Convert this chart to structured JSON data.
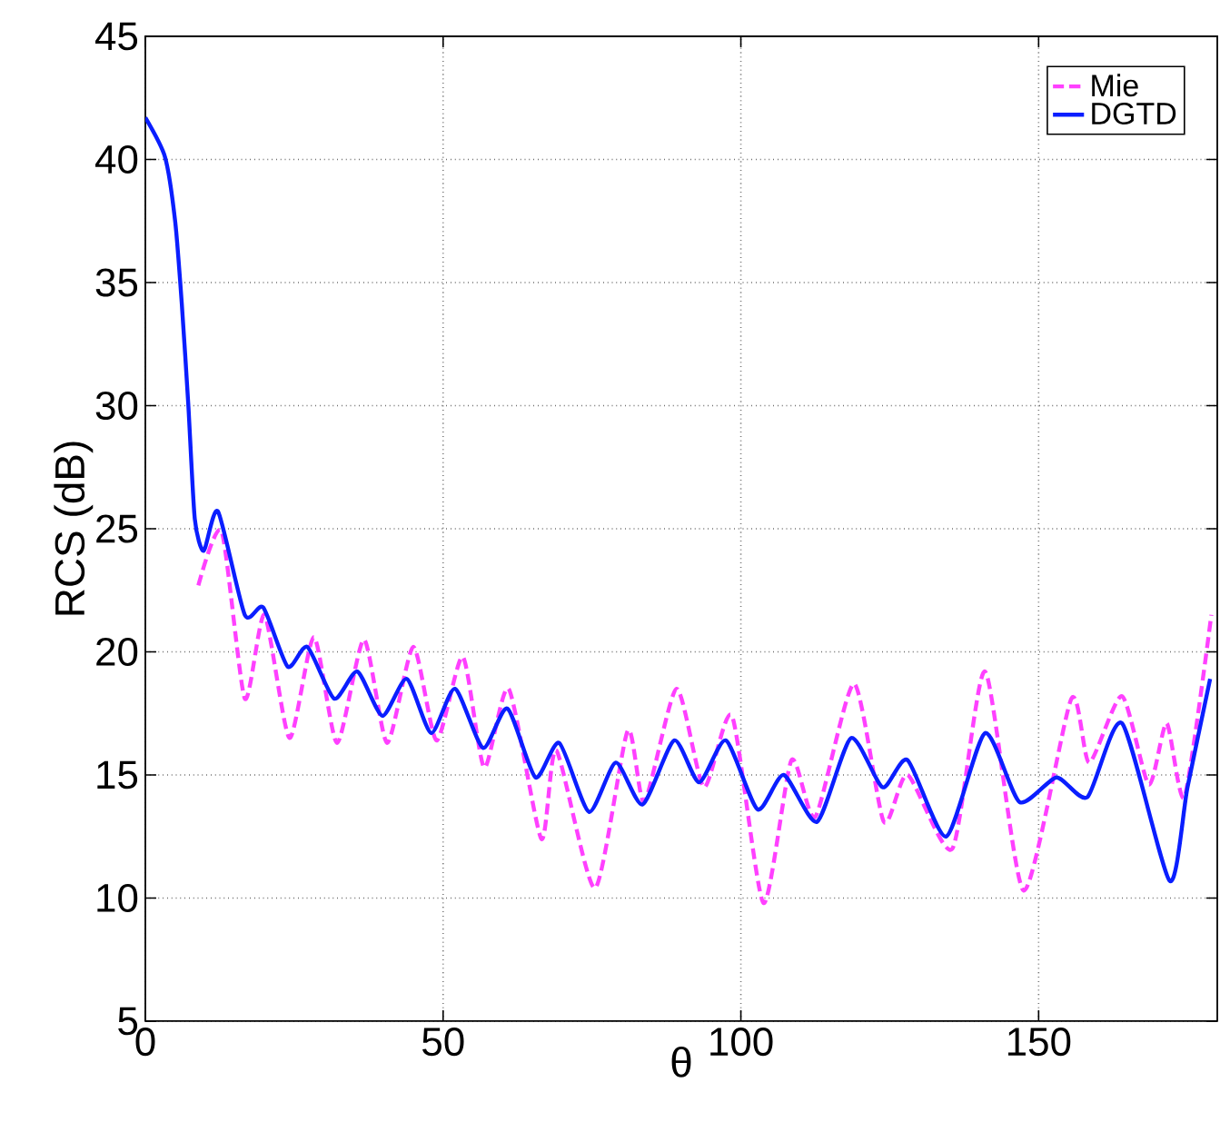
{
  "chart_data": {
    "type": "line",
    "xlabel": "θ",
    "ylabel": "RCS (dB)",
    "xlim": [
      0,
      180
    ],
    "ylim": [
      5,
      45
    ],
    "xticks": [
      0,
      50,
      100,
      150
    ],
    "yticks": [
      5,
      10,
      15,
      20,
      25,
      30,
      35,
      40,
      45
    ],
    "grid": true,
    "legend": "top right",
    "series": [
      {
        "name": "Mie",
        "color": "#ff40ff",
        "line_style": "dashed",
        "x": [
          8.9,
          12.8,
          16.7,
          20,
          24.2,
          28.3,
          32.2,
          36.7,
          40.6,
          45,
          48.9,
          53.3,
          56.9,
          61,
          66.5,
          69,
          75.5,
          81,
          83.8,
          89.2,
          93.8,
          98.5,
          103.8,
          108.5,
          112.5,
          119,
          124,
          128,
          135.5,
          141,
          147.5,
          155.5,
          158.5,
          164,
          168.5,
          171.5,
          174.5,
          179
        ],
        "values": [
          22.7,
          24.9,
          18.1,
          21.5,
          16.5,
          20.6,
          16.3,
          20.5,
          16.3,
          20.2,
          16.4,
          19.8,
          15.3,
          18.5,
          12.4,
          16,
          10.4,
          16.8,
          13.9,
          18.5,
          14.5,
          17.4,
          9.8,
          15.6,
          13.3,
          18.7,
          13.1,
          15,
          12,
          19.2,
          10.3,
          18.1,
          15.5,
          18.2,
          14.6,
          17.1,
          14.1,
          21.5
        ]
      },
      {
        "name": "DGTD",
        "color": "#0a1eff",
        "line_style": "solid",
        "x": [
          0,
          3.3,
          5,
          6.1,
          7.2,
          8.3,
          9.8,
          12.2,
          16.7,
          19.8,
          23.9,
          27.2,
          31.7,
          35.6,
          39.8,
          43.9,
          48,
          52,
          56.7,
          60.8,
          65.5,
          69.5,
          74.5,
          79,
          83.5,
          88.8,
          93,
          97.5,
          102.8,
          107.2,
          112.8,
          118.5,
          123.8,
          128,
          134.5,
          141,
          146.8,
          153,
          158.2,
          164,
          172,
          175,
          178.8
        ],
        "values": [
          41.7,
          40.1,
          37.5,
          34.2,
          30.1,
          25.4,
          24.1,
          25.7,
          21.5,
          21.8,
          19.4,
          20.2,
          18.1,
          19.2,
          17.4,
          18.9,
          16.7,
          18.5,
          16.1,
          17.7,
          14.9,
          16.3,
          13.5,
          15.5,
          13.8,
          16.4,
          14.7,
          16.4,
          13.6,
          15,
          13.1,
          16.5,
          14.5,
          15.6,
          12.5,
          16.7,
          13.9,
          14.9,
          14.1,
          17.1,
          10.7,
          14.5,
          18.9
        ]
      }
    ]
  }
}
